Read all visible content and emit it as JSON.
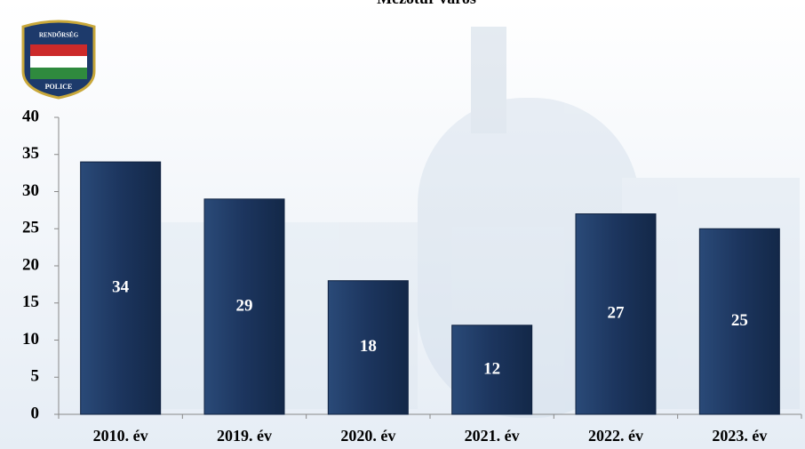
{
  "chart_data": {
    "type": "bar",
    "title": "Mezőtúr város",
    "categories": [
      "2010. év",
      "2019. év",
      "2020. év",
      "2021. év",
      "2022. év",
      "2023. év"
    ],
    "values": [
      34,
      29,
      18,
      12,
      27,
      25
    ],
    "color": "#1c355e",
    "ylim": [
      0,
      40
    ],
    "yticks": [
      0,
      5,
      10,
      15,
      20,
      25,
      30,
      35,
      40
    ]
  },
  "logo": {
    "top": "RENDŐRSÉG",
    "bottom": "POLICE"
  }
}
